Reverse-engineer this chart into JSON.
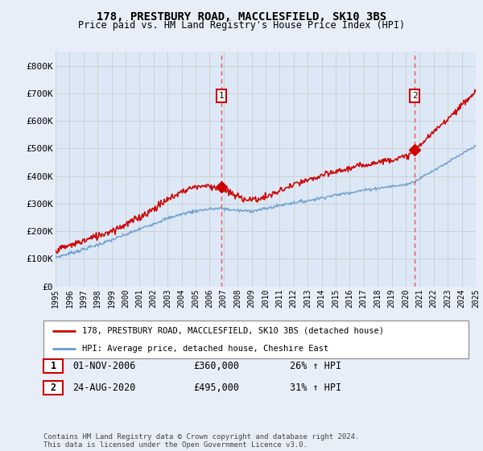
{
  "title": "178, PRESTBURY ROAD, MACCLESFIELD, SK10 3BS",
  "subtitle": "Price paid vs. HM Land Registry's House Price Index (HPI)",
  "background_color": "#e8eef8",
  "plot_bg_color": "#dce8f5",
  "ylim": [
    0,
    850000
  ],
  "yticks": [
    0,
    100000,
    200000,
    300000,
    400000,
    500000,
    600000,
    700000,
    800000
  ],
  "ytick_labels": [
    "£0",
    "£100K",
    "£200K",
    "£300K",
    "£400K",
    "£500K",
    "£600K",
    "£700K",
    "£800K"
  ],
  "year_start": 1995,
  "year_end": 2025,
  "sale1_date": 2006.83,
  "sale1_price": 360000,
  "sale1_label": "01-NOV-2006",
  "sale1_pct": "26% ↑ HPI",
  "sale2_date": 2020.65,
  "sale2_price": 495000,
  "sale2_label": "24-AUG-2020",
  "sale2_pct": "31% ↑ HPI",
  "red_line_color": "#cc0000",
  "blue_line_color": "#6699cc",
  "legend_label_red": "178, PRESTBURY ROAD, MACCLESFIELD, SK10 3BS (detached house)",
  "legend_label_blue": "HPI: Average price, detached house, Cheshire East",
  "footer": "Contains HM Land Registry data © Crown copyright and database right 2024.\nThis data is licensed under the Open Government Licence v3.0.",
  "grid_color": "#cccccc",
  "dashed_line_color": "#ee4444"
}
